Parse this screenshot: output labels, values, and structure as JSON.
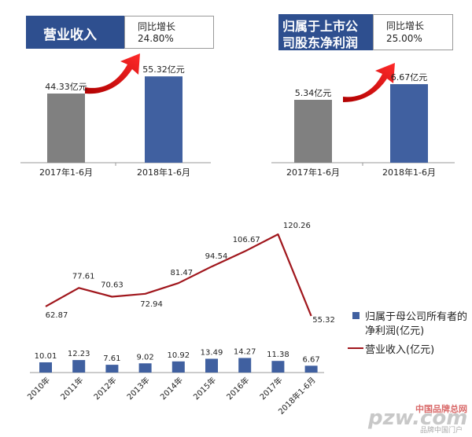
{
  "panel_left": {
    "title": "营业收入",
    "growth_label": "同比增长",
    "growth_value": "24.80%"
  },
  "panel_right": {
    "title_line1": "归属于上市公",
    "title_line2": "司股东净利润",
    "growth_label": "同比增长",
    "growth_value": "25.00%"
  },
  "legend": {
    "bar_line1": "归属于母公司所有者的",
    "bar_line2": "净利润(亿元)",
    "line": "营业收入(亿元)"
  },
  "watermark": {
    "logo": "pzw.com",
    "cn_name": "中国品牌总网",
    "slogan": "品牌中国门户"
  },
  "colors": {
    "gray_bar": "#808080",
    "blue_bar": "#4060a0",
    "title_bg": "#2e4f8f",
    "line": "#a0161c",
    "arrow": "#e01818"
  },
  "chart_data": [
    {
      "type": "bar",
      "categories": [
        "2017年1-6月",
        "2018年1-6月"
      ],
      "values": [
        44.33,
        55.32
      ],
      "labels": [
        "44.33亿元",
        "55.32亿元"
      ]
    },
    {
      "type": "bar",
      "categories": [
        "2017年1-6月",
        "2018年1-6月"
      ],
      "values": [
        5.34,
        6.67
      ],
      "labels": [
        "5.34亿元",
        "6.67亿元"
      ]
    },
    {
      "type": "bar+line",
      "categories": [
        "2010年",
        "2011年",
        "2012年",
        "2013年",
        "2014年",
        "2015年",
        "2016年",
        "2017年",
        "2018年1-6月"
      ],
      "series": [
        {
          "name": "归属于母公司所有者的净利润(亿元)",
          "type": "bar",
          "values": [
            10.01,
            12.23,
            7.61,
            9.02,
            10.92,
            13.49,
            14.27,
            11.38,
            6.67
          ],
          "labels": [
            "10.01",
            "12.23",
            "7.61",
            "9.02",
            "10.92",
            "13.49",
            "14.27",
            "11.38",
            "6.67"
          ]
        },
        {
          "name": "营业收入(亿元)",
          "type": "line",
          "values": [
            62.87,
            77.61,
            70.63,
            72.94,
            81.47,
            94.54,
            106.67,
            120.26,
            55.32
          ],
          "labels": [
            "62.87",
            "77.61",
            "70.63",
            "72.94",
            "81.47",
            "94.54",
            "106.67",
            "120.26",
            "55.32"
          ]
        }
      ]
    }
  ]
}
